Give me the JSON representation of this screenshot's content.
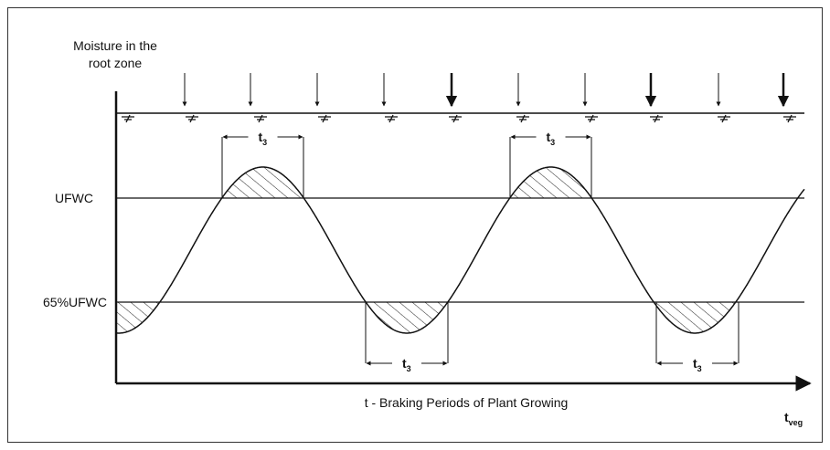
{
  "y_axis_label": [
    "Moisture in the",
    "root zone"
  ],
  "levels": [
    "UFWC",
    "65%UFWC"
  ],
  "intervals": [
    {
      "base": "t",
      "sub": "3"
    },
    {
      "base": "t",
      "sub": "3"
    },
    {
      "base": "t",
      "sub": "3"
    },
    {
      "base": "t",
      "sub": "3"
    }
  ],
  "x_axis_label": "t - Braking Periods of Plant Growing",
  "x_axis_end": {
    "base": "t",
    "sub": "veg"
  }
}
